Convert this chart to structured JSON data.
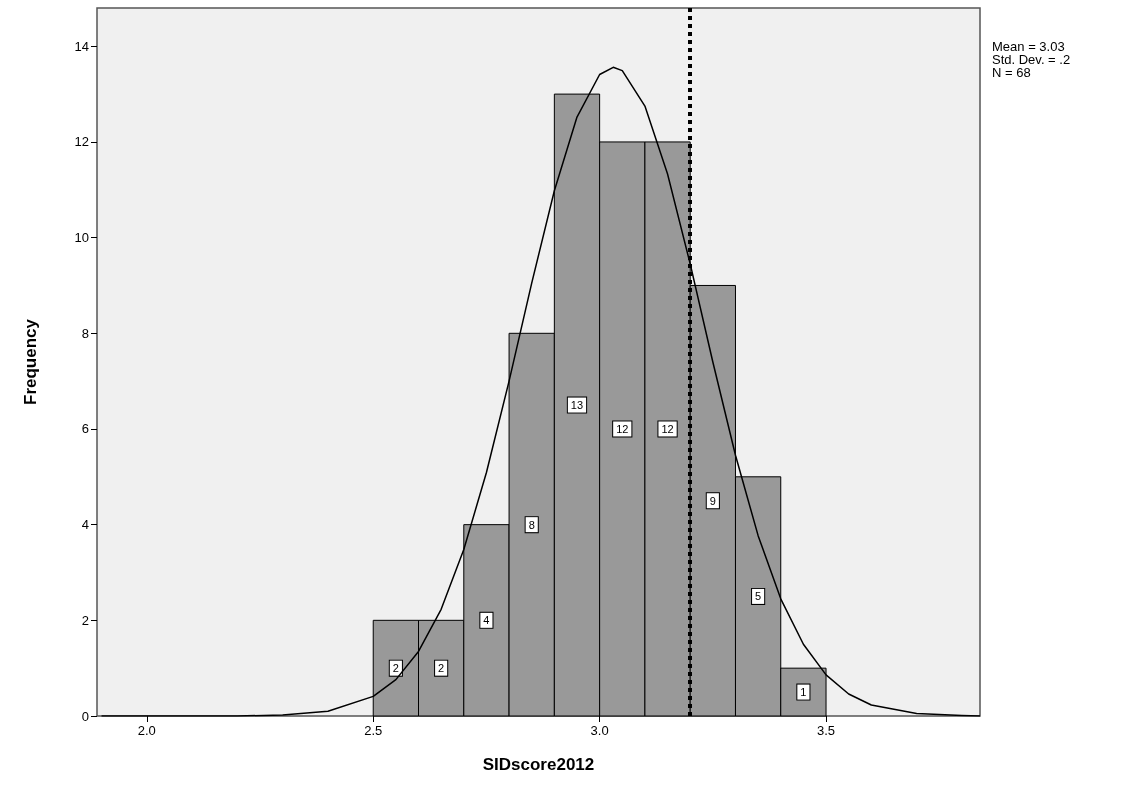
{
  "chart_data": {
    "type": "histogram",
    "xlabel": "SIDscore2012",
    "ylabel": "Frequency",
    "bins": [
      2.5,
      2.6,
      2.7,
      2.8,
      2.9,
      3.0,
      3.1,
      3.2,
      3.3,
      3.4,
      3.5
    ],
    "values": [
      2,
      2,
      4,
      8,
      13,
      12,
      12,
      9,
      5,
      1
    ],
    "color": "#999999",
    "value_labels": [
      "2",
      "2",
      "4",
      "8",
      "13",
      "12",
      "12",
      "9",
      "5",
      "1"
    ],
    "series": [
      {
        "type": "line",
        "color": "#000000",
        "x": [
          1.9,
          2.0,
          2.2,
          2.3,
          2.4,
          2.5,
          2.55,
          2.6,
          2.65,
          2.7,
          2.75,
          2.8,
          2.85,
          2.9,
          2.95,
          3.0,
          3.03,
          3.05,
          3.1,
          3.15,
          3.2,
          3.25,
          3.3,
          3.35,
          3.4,
          3.45,
          3.5,
          3.55,
          3.6,
          3.7,
          3.8,
          3.84
        ],
        "values": [
          0,
          0,
          0,
          0.02,
          0.1,
          0.41,
          0.76,
          1.35,
          2.23,
          3.48,
          5.09,
          7.0,
          9.05,
          10.98,
          12.52,
          13.41,
          13.56,
          13.49,
          12.75,
          11.33,
          9.45,
          7.4,
          5.45,
          3.77,
          2.45,
          1.5,
          0.86,
          0.46,
          0.23,
          0.05,
          0.01,
          0
        ]
      }
    ],
    "xlim": [
      1.89,
      3.84
    ],
    "xticks": [
      {
        "value": 2,
        "label": "2.0"
      },
      {
        "value": 2.5,
        "label": "2.5"
      },
      {
        "value": 3,
        "label": "3.0"
      },
      {
        "value": 3.5,
        "label": "3.5"
      }
    ],
    "ylim": [
      0,
      14.8
    ],
    "yticks": [
      0,
      2,
      4,
      6,
      8,
      10,
      12,
      14
    ],
    "grid": false,
    "marker": "none",
    "ref_lines": [
      {
        "axis": "x",
        "value": 3.2,
        "color": "#000000",
        "line_style": "dotted"
      }
    ],
    "annotations": [
      "Mean = 3.03",
      "Std. Dev. = .2",
      "N = 68"
    ]
  }
}
